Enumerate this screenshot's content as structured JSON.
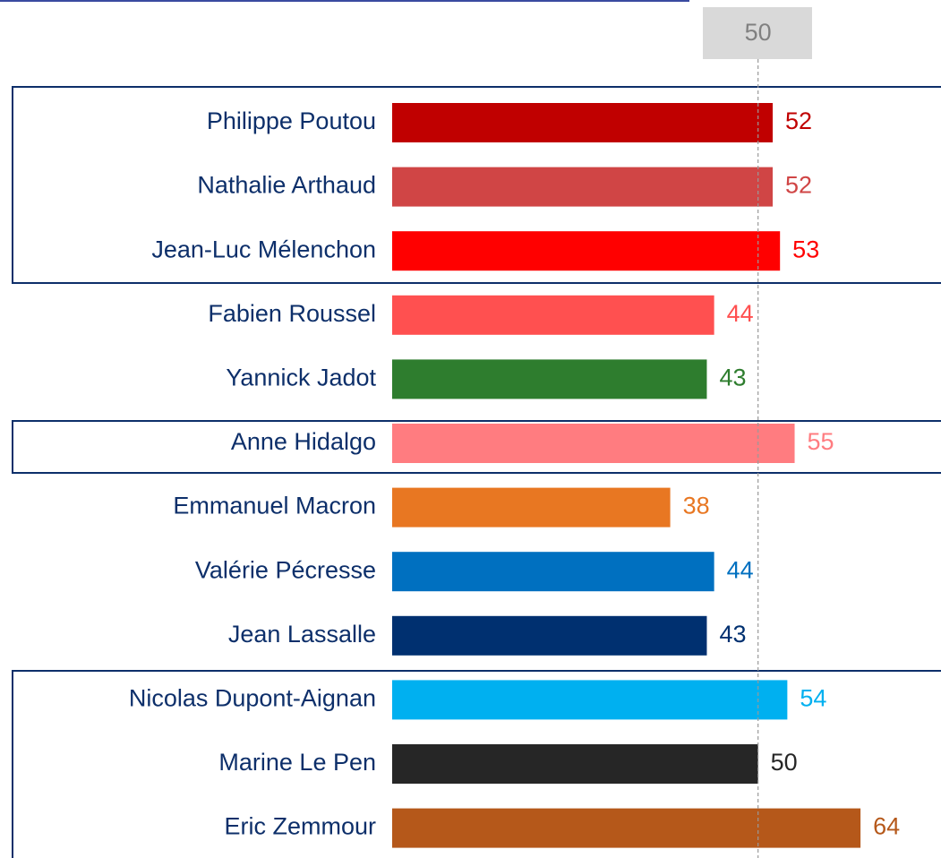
{
  "chart_data": {
    "type": "hbar",
    "categories": [
      "Philippe Poutou",
      "Nathalie Arthaud",
      "Jean-Luc Mélenchon",
      "Fabien Roussel",
      "Yannick Jadot",
      "Anne Hidalgo",
      "Emmanuel Macron",
      "Valérie Pécresse",
      "Jean Lassalle",
      "Nicolas Dupont-Aignan",
      "Marine Le Pen",
      "Eric Zemmour"
    ],
    "values": [
      52,
      52,
      53,
      44,
      43,
      55,
      38,
      44,
      43,
      54,
      50,
      64
    ],
    "colors": [
      "#c00000",
      "#d04545",
      "#ff0000",
      "#ff5050",
      "#2e7d2e",
      "#ff7c80",
      "#e87722",
      "#0070c0",
      "#003070",
      "#00b0f0",
      "#262626",
      "#b5581a"
    ],
    "xlim": [
      0,
      75
    ],
    "reference_line": 50
  }
}
